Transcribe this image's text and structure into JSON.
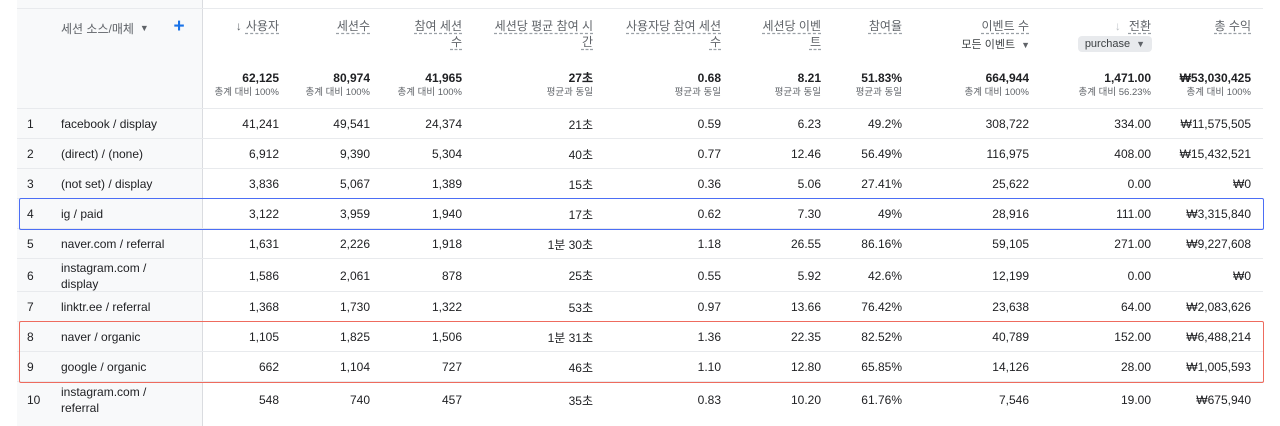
{
  "header": {
    "dimension_label": "세션 소스/매체",
    "add_label": "+",
    "sort_arrow": "↓",
    "event_filter": "모든 이벤트",
    "conversion_filter": "purchase",
    "columns": [
      {
        "label": "사용자"
      },
      {
        "label": "세션수"
      },
      {
        "label": "참여 세션",
        "label2": "수"
      },
      {
        "label": "세션당 평균 참여 시",
        "label2": "간"
      },
      {
        "label": "사용자당 참여 세션",
        "label2": "수"
      },
      {
        "label": "세션당 이벤",
        "label2": "트"
      },
      {
        "label": "참여율"
      },
      {
        "label": "이벤트 수"
      },
      {
        "label": "전환"
      },
      {
        "label": "총 수익"
      }
    ]
  },
  "totals": [
    {
      "value": "62,125",
      "sub": "총계 대비 100%"
    },
    {
      "value": "80,974",
      "sub": "총계 대비 100%"
    },
    {
      "value": "41,965",
      "sub": "총계 대비 100%"
    },
    {
      "value": "27초",
      "sub": "평균과 동일"
    },
    {
      "value": "0.68",
      "sub": "평균과 동일"
    },
    {
      "value": "8.21",
      "sub": "평균과 동일"
    },
    {
      "value": "51.83%",
      "sub": "평균과 동일"
    },
    {
      "value": "664,944",
      "sub": "총계 대비 100%"
    },
    {
      "value": "1,471.00",
      "sub": "총계 대비 56.23%"
    },
    {
      "value": "₩53,030,425",
      "sub": "총계 대비 100%"
    }
  ],
  "rows": [
    {
      "index": "1",
      "dim": "facebook / display",
      "values": [
        "41,241",
        "49,541",
        "24,374",
        "21초",
        "0.59",
        "6.23",
        "49.2%",
        "308,722",
        "334.00",
        "₩11,575,505"
      ]
    },
    {
      "index": "2",
      "dim": "(direct) / (none)",
      "values": [
        "6,912",
        "9,390",
        "5,304",
        "40초",
        "0.77",
        "12.46",
        "56.49%",
        "116,975",
        "408.00",
        "₩15,432,521"
      ]
    },
    {
      "index": "3",
      "dim": "(not set) / display",
      "values": [
        "3,836",
        "5,067",
        "1,389",
        "15초",
        "0.36",
        "5.06",
        "27.41%",
        "25,622",
        "0.00",
        "₩0"
      ]
    },
    {
      "index": "4",
      "dim": "ig / paid",
      "values": [
        "3,122",
        "3,959",
        "1,940",
        "17초",
        "0.62",
        "7.30",
        "49%",
        "28,916",
        "111.00",
        "₩3,315,840"
      ]
    },
    {
      "index": "5",
      "dim": "naver.com / referral",
      "values": [
        "1,631",
        "2,226",
        "1,918",
        "1분 30초",
        "1.18",
        "26.55",
        "86.16%",
        "59,105",
        "271.00",
        "₩9,227,608"
      ]
    },
    {
      "index": "6",
      "dim": "instagram.com /",
      "dim2": "display",
      "values": [
        "1,586",
        "2,061",
        "878",
        "25초",
        "0.55",
        "5.92",
        "42.6%",
        "12,199",
        "0.00",
        "₩0"
      ]
    },
    {
      "index": "7",
      "dim": "linktr.ee / referral",
      "values": [
        "1,368",
        "1,730",
        "1,322",
        "53초",
        "0.97",
        "13.66",
        "76.42%",
        "23,638",
        "64.00",
        "₩2,083,626"
      ]
    },
    {
      "index": "8",
      "dim": "naver / organic",
      "values": [
        "1,105",
        "1,825",
        "1,506",
        "1분 31초",
        "1.36",
        "22.35",
        "82.52%",
        "40,789",
        "152.00",
        "₩6,488,214"
      ]
    },
    {
      "index": "9",
      "dim": "google / organic",
      "values": [
        "662",
        "1,104",
        "727",
        "46초",
        "1.10",
        "12.80",
        "65.85%",
        "14,126",
        "28.00",
        "₩1,005,593"
      ]
    },
    {
      "index": "10",
      "dim": "instagram.com /",
      "dim2": "referral",
      "values": [
        "548",
        "740",
        "457",
        "35초",
        "0.83",
        "10.20",
        "61.76%",
        "7,546",
        "19.00",
        "₩675,940"
      ]
    }
  ],
  "highlights": {
    "blue": [
      "4"
    ],
    "red": [
      "8",
      "9"
    ]
  }
}
